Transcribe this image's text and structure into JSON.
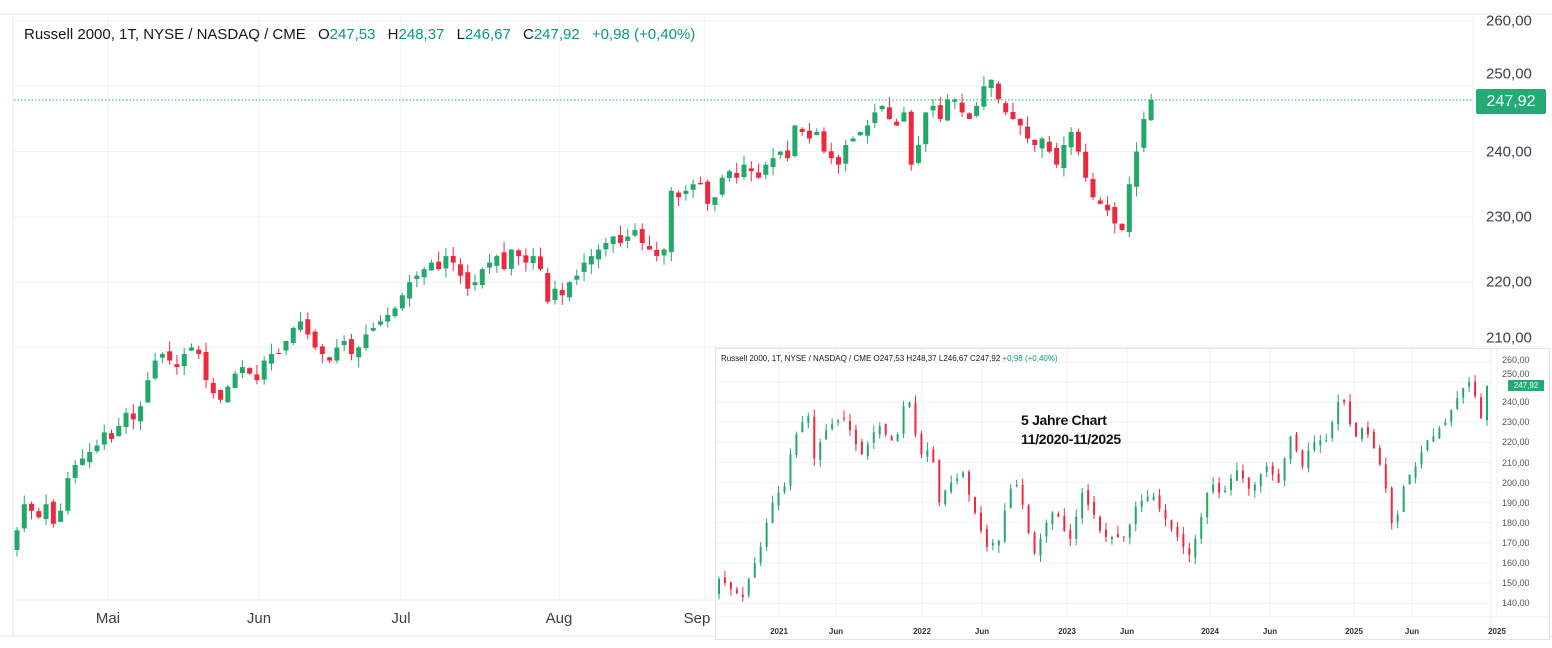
{
  "header": {
    "symbol": "Russell 2000, 1T, NYSE / NASDAQ / CME",
    "o_label": "O",
    "o": "247,53",
    "h_label": "H",
    "h": "248,37",
    "l_label": "L",
    "l": "246,67",
    "c_label": "C",
    "c": "247,92",
    "change": "+0,98 (+0,40%)"
  },
  "last_price_badge": "247,92",
  "colors": {
    "up": "#22a86a",
    "down": "#f0283f",
    "accent": "#22ab74",
    "grid": "#f0f1f4"
  },
  "inset": {
    "header": "Russell 2000, 1T, NYSE / NASDAQ / CME  O247,53  H248,37  L246,67  C247,92",
    "change": "+0,98 (+0,40%)",
    "annotation_line1": "5 Jahre Chart",
    "annotation_line2": "11/2020-11/2025",
    "badge": "247,92"
  },
  "chart_data": [
    {
      "type": "candlestick",
      "title": "Russell 2000, 1T, NYSE / NASDAQ / CME",
      "ylim": [
        210,
        260
      ],
      "y_ticks": [
        "260,00",
        "250,00",
        "240,00",
        "230,00",
        "220,00",
        "210,00"
      ],
      "y_tick_values": [
        260,
        250,
        240,
        230,
        220,
        210
      ],
      "x_ticks": [
        "Mai",
        "Jun",
        "Jul",
        "Aug",
        "Sep"
      ],
      "grid": true,
      "last_value": 247.92,
      "closes": [
        182,
        186,
        185,
        184,
        186,
        183,
        185,
        190,
        192,
        193,
        194,
        195,
        197,
        196,
        198,
        200,
        199,
        201,
        205,
        208,
        209,
        208,
        207,
        209,
        210,
        209,
        205,
        203,
        202,
        204,
        206,
        207,
        206,
        205,
        208,
        209,
        209,
        211,
        213,
        214,
        212,
        210,
        209,
        208,
        210,
        211,
        209,
        210,
        212,
        213,
        214,
        215,
        216,
        218,
        220,
        221,
        222,
        223,
        222,
        224,
        223,
        221,
        219,
        220,
        222,
        223,
        224,
        222,
        225,
        224,
        223,
        224,
        222,
        217,
        219,
        218,
        220,
        221,
        223,
        224,
        225,
        226,
        227,
        226,
        227,
        228,
        226,
        225,
        224,
        225,
        234,
        233,
        234,
        235,
        235,
        232,
        233,
        236,
        237,
        236,
        238,
        237,
        236,
        238,
        239,
        240,
        239,
        244,
        243,
        242,
        243,
        240,
        239,
        238,
        241,
        242,
        243,
        244,
        246,
        247,
        245,
        244,
        246,
        238,
        241,
        246,
        247,
        245,
        248,
        248,
        246,
        245,
        247,
        250,
        251,
        248,
        246,
        245,
        244,
        242,
        241,
        242,
        240,
        238,
        241,
        243,
        240,
        236,
        233,
        232,
        231,
        229,
        228,
        235,
        240,
        245,
        247.92
      ]
    },
    {
      "type": "candlestick",
      "title": "5 Jahre Chart 11/2020-11/2025",
      "ylim": [
        140,
        260
      ],
      "y_ticks": [
        "260,00",
        "250,00",
        "240,00",
        "230,00",
        "220,00",
        "210,00",
        "200,00",
        "190,00",
        "180,00",
        "170,00",
        "160,00",
        "150,00",
        "140,00"
      ],
      "y_tick_values": [
        260,
        250,
        240,
        230,
        220,
        210,
        200,
        190,
        180,
        170,
        160,
        150,
        140
      ],
      "x_ticks": [
        "2021",
        "Jun",
        "2022",
        "Jun",
        "2023",
        "Jun",
        "2024",
        "Jun",
        "2025",
        "Jun",
        "2025"
      ],
      "grid": true,
      "last_value": 247.92,
      "closes": [
        152,
        150,
        147,
        145,
        143,
        152,
        160,
        168,
        180,
        190,
        195,
        198,
        214,
        224,
        230,
        233,
        212,
        220,
        226,
        229,
        231,
        232,
        226,
        219,
        214,
        219,
        225,
        228,
        224,
        221,
        224,
        238,
        240,
        224,
        214,
        216,
        210,
        190,
        196,
        200,
        202,
        205,
        194,
        185,
        176,
        168,
        170,
        171,
        186,
        197,
        199,
        189,
        175,
        165,
        172,
        180,
        185,
        183,
        176,
        172,
        183,
        195,
        189,
        184,
        176,
        173,
        173,
        173,
        173,
        179,
        188,
        191,
        193,
        193,
        187,
        182,
        177,
        173,
        168,
        164,
        172,
        183,
        195,
        199,
        195,
        196,
        202,
        206,
        202,
        197,
        199,
        204,
        208,
        204,
        200,
        212,
        223,
        216,
        208,
        216,
        220,
        221,
        221,
        230,
        240,
        240,
        229,
        223,
        227,
        224,
        217,
        209,
        197,
        180,
        184,
        198,
        204,
        208,
        215,
        221,
        223,
        227,
        230,
        236,
        242,
        247,
        250,
        243,
        232,
        247.92
      ]
    }
  ]
}
